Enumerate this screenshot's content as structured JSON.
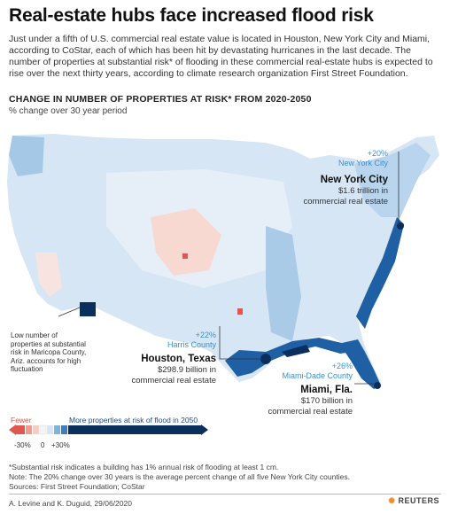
{
  "title": "Real-estate hubs face increased flood risk",
  "intro": "Just under a fifth of U.S. commercial real estate value is located in Houston, New York City and Miami, according to CoStar, each of which has been hit by devastating hurricanes in the last decade. The number of properties at substantial risk* of flooding in these commercial real-estate hubs is expected to rise over the next thirty years, according to climate research organization First Street Foundation.",
  "chart": {
    "title": "CHANGE IN NUMBER OF PROPERTIES AT RISK* FROM 2020-2050",
    "subtitle": "% change over 30 year period"
  },
  "annotations": {
    "nyc": {
      "pct": "+20%",
      "area": "New York City",
      "city": "New York City",
      "detail1": "$1.6 trillion in",
      "detail2": "commercial real estate"
    },
    "houston": {
      "pct": "+22%",
      "area": "Harris County",
      "city": "Houston, Texas",
      "detail1": "$298.9 billion in",
      "detail2": "commercial real estate"
    },
    "miami": {
      "pct": "+26%",
      "area": "Miami-Dade County",
      "city": "Miami, Fla.",
      "detail1": "$170 billion in",
      "detail2": "commercial real estate"
    },
    "maricopa": "Low number of properties at substantial risk in Maricopa County, Ariz. accounts for high fluctuation"
  },
  "legend": {
    "fewer": "Fewer",
    "more": "More properties at risk of flood in 2050",
    "ticks": [
      "-30%",
      "0",
      "+30%"
    ],
    "colors": {
      "negative": "#e0574f",
      "neutral": "#f4f4f4",
      "positive": "#0b2f5c"
    }
  },
  "footnotes": {
    "f1": "*Substantial risk indicates a building has 1% annual risk of flooding at least 1 cm.",
    "f2": "Note: The 20% change over 30 years is the average percent change of all five New York City counties.",
    "sources": "Sources: First Street Foundation; CoStar"
  },
  "credit": "A. Levine and K. Duguid, 29/06/2020",
  "logo": "REUTERS",
  "map": {
    "colors": {
      "base": "#d6e6f4",
      "light": "#e8f1f9",
      "mid": "#7fb3de",
      "dark": "#1f5fa3",
      "darkest": "#0b2f5c",
      "red": "#e0574f",
      "pink": "#f7c8bf"
    }
  }
}
